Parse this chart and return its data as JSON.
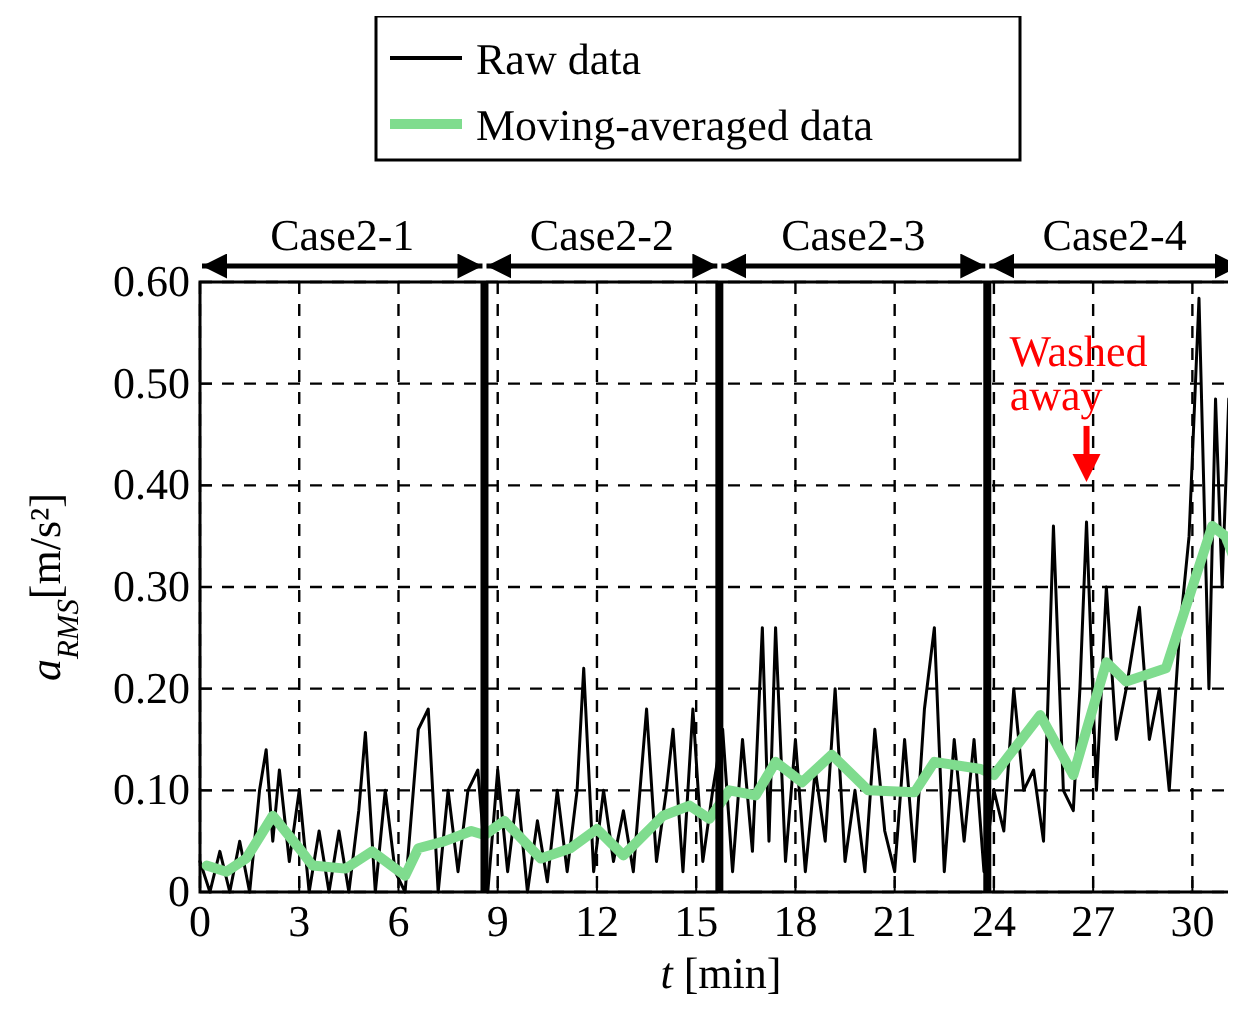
{
  "chart_data": {
    "type": "line",
    "xlabel": "t [min]",
    "ylabel": "a$_{RMS}$[m/s²]",
    "xlim": [
      0,
      31.5
    ],
    "xticks": [
      0,
      3,
      6,
      9,
      12,
      15,
      18,
      21,
      24,
      27,
      30
    ],
    "ylim": [
      0,
      0.6
    ],
    "yticks": [
      {
        "value": 0,
        "label": "0"
      },
      {
        "value": 0.1,
        "label": "0.10"
      },
      {
        "value": 0.2,
        "label": "0.20"
      },
      {
        "value": 0.3,
        "label": "0.30"
      },
      {
        "value": 0.4,
        "label": "0.40"
      },
      {
        "value": 0.5,
        "label": "0.50"
      },
      {
        "value": 0.6,
        "label": "0.60"
      }
    ],
    "grid": true,
    "legend": "top",
    "line_style": "solid",
    "marker": "none",
    "series": [
      {
        "name": "Raw data",
        "color": "#000000",
        "x": [
          0,
          0.3,
          0.6,
          0.9,
          1.2,
          1.5,
          1.8,
          2.0,
          2.2,
          2.4,
          2.7,
          3.0,
          3.3,
          3.6,
          3.9,
          4.2,
          4.5,
          4.8,
          5.0,
          5.3,
          5.6,
          5.9,
          6.2,
          6.6,
          6.9,
          7.2,
          7.5,
          7.8,
          8.1,
          8.4,
          8.7,
          9.0,
          9.3,
          9.6,
          9.9,
          10.2,
          10.5,
          10.8,
          11.1,
          11.4,
          11.6,
          11.9,
          12.2,
          12.5,
          12.8,
          13.1,
          13.5,
          13.8,
          14.1,
          14.3,
          14.6,
          14.9,
          15.2,
          15.5,
          15.8,
          16.1,
          16.4,
          16.7,
          17.0,
          17.2,
          17.4,
          17.7,
          18.0,
          18.3,
          18.6,
          18.9,
          19.2,
          19.5,
          19.8,
          20.1,
          20.4,
          20.7,
          21.0,
          21.3,
          21.6,
          21.9,
          22.2,
          22.5,
          22.8,
          23.1,
          23.4,
          23.7,
          24.0,
          24.3,
          24.6,
          24.9,
          25.2,
          25.5,
          25.8,
          26.1,
          26.4,
          26.6,
          26.8,
          27.1,
          27.4,
          27.7,
          28.0,
          28.4,
          28.7,
          29.0,
          29.3,
          29.6,
          29.9,
          30.2,
          30.5,
          30.7,
          30.9,
          31.1,
          31.3
        ],
        "values": [
          0.03,
          0.0,
          0.04,
          0.0,
          0.05,
          0.0,
          0.1,
          0.14,
          0.05,
          0.12,
          0.03,
          0.1,
          0.0,
          0.06,
          0.0,
          0.06,
          0.0,
          0.08,
          0.157,
          0.0,
          0.1,
          0.02,
          0.0,
          0.16,
          0.18,
          0.0,
          0.1,
          0.02,
          0.1,
          0.12,
          0.0,
          0.12,
          0.02,
          0.1,
          0.0,
          0.07,
          0.01,
          0.1,
          0.02,
          0.1,
          0.22,
          0.02,
          0.1,
          0.03,
          0.08,
          0.02,
          0.18,
          0.03,
          0.1,
          0.16,
          0.02,
          0.18,
          0.03,
          0.1,
          0.16,
          0.02,
          0.15,
          0.04,
          0.26,
          0.05,
          0.26,
          0.03,
          0.15,
          0.02,
          0.12,
          0.05,
          0.2,
          0.03,
          0.1,
          0.02,
          0.16,
          0.06,
          0.02,
          0.15,
          0.03,
          0.18,
          0.26,
          0.02,
          0.15,
          0.05,
          0.15,
          0.02,
          0.1,
          0.06,
          0.2,
          0.1,
          0.12,
          0.05,
          0.36,
          0.1,
          0.08,
          0.2,
          0.364,
          0.1,
          0.3,
          0.15,
          0.2,
          0.28,
          0.15,
          0.2,
          0.1,
          0.25,
          0.35,
          0.584,
          0.2,
          0.485,
          0.3,
          0.485,
          0.42
        ]
      },
      {
        "name": "Moving-averaged data",
        "color": "#7fdc8e",
        "x": [
          0.2,
          0.8,
          1.4,
          2.2,
          3.0,
          3.4,
          4.4,
          5.2,
          6.2,
          6.6,
          7.4,
          8.2,
          8.6,
          9.2,
          10.3,
          11.2,
          12.0,
          12.8,
          14.0,
          14.8,
          15.4,
          16.0,
          16.8,
          17.4,
          18.2,
          19.1,
          20.2,
          21.6,
          22.2,
          23.6,
          24.0,
          25.4,
          26.4,
          27.4,
          28.0,
          29.2,
          30.0,
          30.6,
          31.0,
          31.3
        ],
        "values": [
          0.026,
          0.02,
          0.033,
          0.075,
          0.043,
          0.026,
          0.023,
          0.04,
          0.016,
          0.043,
          0.05,
          0.06,
          0.056,
          0.07,
          0.033,
          0.043,
          0.062,
          0.036,
          0.075,
          0.085,
          0.072,
          0.1,
          0.095,
          0.128,
          0.108,
          0.135,
          0.1,
          0.098,
          0.128,
          0.121,
          0.115,
          0.174,
          0.115,
          0.226,
          0.207,
          0.22,
          0.3,
          0.36,
          0.35,
          0.325
        ]
      }
    ],
    "ref_lines": [
      {
        "axis": "x",
        "value": 8.6,
        "color": "#000000"
      },
      {
        "axis": "x",
        "value": 15.7,
        "color": "#000000"
      },
      {
        "axis": "x",
        "value": 23.8,
        "color": "#000000"
      }
    ],
    "annotations": [
      "Case2-1",
      "Case2-2",
      "Case2-3",
      "Case2-4",
      {
        "text": "Washed away",
        "x": 26.8,
        "y": 0.364
      }
    ]
  }
}
